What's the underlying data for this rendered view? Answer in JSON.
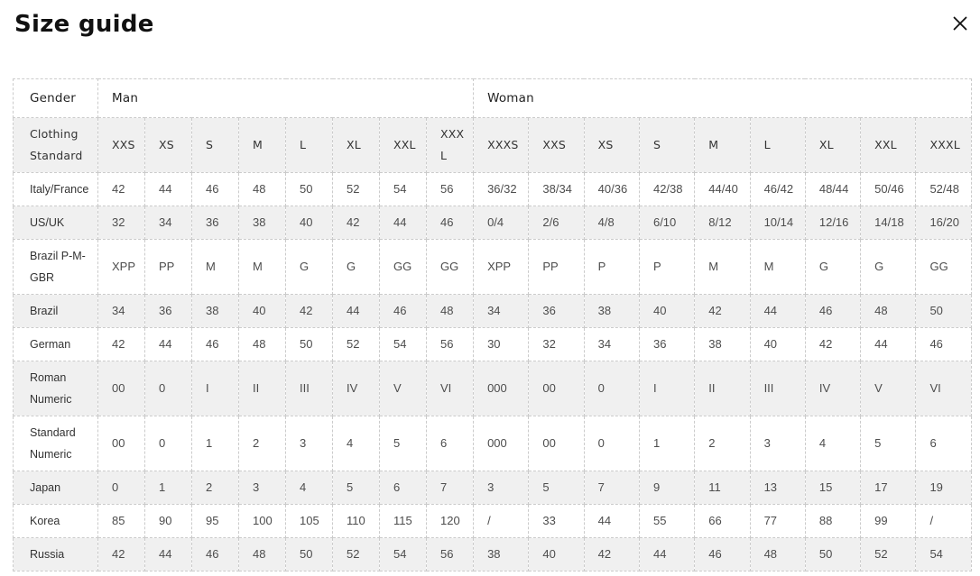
{
  "page": {
    "title": "Size guide"
  },
  "icons": {
    "close": "✕"
  },
  "colors": {
    "row_shade": "#f0f0f0",
    "border": "#cbcbcb",
    "title_text": "#111111",
    "cell_text": "#4d4d4d"
  },
  "table": {
    "gender_header": {
      "label": "Gender",
      "man": "Man",
      "woman": "Woman"
    },
    "standard_header": {
      "label": "Clothing Standard",
      "man_sizes": [
        "XXS",
        "XS",
        "S",
        "M",
        "L",
        "XL",
        "XXL",
        "XXXL"
      ],
      "woman_sizes": [
        "XXXS",
        "XXS",
        "XS",
        "S",
        "M",
        "L",
        "XL",
        "XXL",
        "XXXL"
      ]
    },
    "rows": [
      {
        "label": "Italy/France",
        "man": [
          "42",
          "44",
          "46",
          "48",
          "50",
          "52",
          "54",
          "56"
        ],
        "woman": [
          "36/32",
          "38/34",
          "40/36",
          "42/38",
          "44/40",
          "46/42",
          "48/44",
          "50/46",
          "52/48"
        ]
      },
      {
        "label": "US/UK",
        "man": [
          "32",
          "34",
          "36",
          "38",
          "40",
          "42",
          "44",
          "46"
        ],
        "woman": [
          "0/4",
          "2/6",
          "4/8",
          "6/10",
          "8/12",
          "10/14",
          "12/16",
          "14/18",
          "16/20"
        ]
      },
      {
        "label": "Brazil P-M-GBR",
        "man": [
          "XPP",
          "PP",
          "M",
          "M",
          "G",
          "G",
          "GG",
          "GG"
        ],
        "woman": [
          "XPP",
          "PP",
          "P",
          "P",
          "M",
          "M",
          "G",
          "G",
          "GG"
        ]
      },
      {
        "label": "Brazil",
        "man": [
          "34",
          "36",
          "38",
          "40",
          "42",
          "44",
          "46",
          "48"
        ],
        "woman": [
          "34",
          "36",
          "38",
          "40",
          "42",
          "44",
          "46",
          "48",
          "50"
        ]
      },
      {
        "label": "German",
        "man": [
          "42",
          "44",
          "46",
          "48",
          "50",
          "52",
          "54",
          "56"
        ],
        "woman": [
          "30",
          "32",
          "34",
          "36",
          "38",
          "40",
          "42",
          "44",
          "46"
        ]
      },
      {
        "label": "Roman Numeric",
        "man": [
          "00",
          "0",
          "I",
          "II",
          "III",
          "IV",
          "V",
          "VI"
        ],
        "woman": [
          "000",
          "00",
          "0",
          "I",
          "II",
          "III",
          "IV",
          "V",
          "VI"
        ]
      },
      {
        "label": "Standard Numeric",
        "man": [
          "00",
          "0",
          "1",
          "2",
          "3",
          "4",
          "5",
          "6"
        ],
        "woman": [
          "000",
          "00",
          "0",
          "1",
          "2",
          "3",
          "4",
          "5",
          "6"
        ]
      },
      {
        "label": "Japan",
        "man": [
          "0",
          "1",
          "2",
          "3",
          "4",
          "5",
          "6",
          "7"
        ],
        "woman": [
          "3",
          "5",
          "7",
          "9",
          "11",
          "13",
          "15",
          "17",
          "19"
        ]
      },
      {
        "label": "Korea",
        "man": [
          "85",
          "90",
          "95",
          "100",
          "105",
          "110",
          "115",
          "120"
        ],
        "woman": [
          "/",
          "33",
          "44",
          "55",
          "66",
          "77",
          "88",
          "99",
          "/"
        ]
      },
      {
        "label": "Russia",
        "man": [
          "42",
          "44",
          "46",
          "48",
          "50",
          "52",
          "54",
          "56"
        ],
        "woman": [
          "38",
          "40",
          "42",
          "44",
          "46",
          "48",
          "50",
          "52",
          "54"
        ]
      }
    ]
  }
}
